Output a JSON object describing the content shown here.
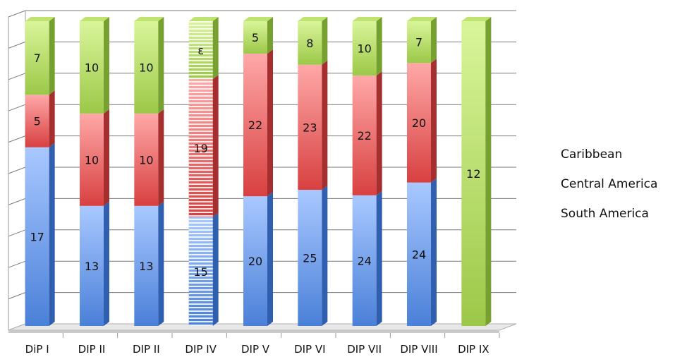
{
  "chart_data": {
    "type": "bar",
    "stacked": true,
    "style": "3d",
    "categories": [
      "DiP I",
      "DIP II",
      "DIP II",
      "DIP IV",
      "DIP V",
      "DIP VI",
      "DIP VII",
      "DIP VIII",
      "DIP IX"
    ],
    "series": [
      {
        "name": "South America",
        "values": [
          17,
          13,
          13,
          15,
          20,
          25,
          24,
          24,
          0
        ],
        "labels": [
          "17",
          "13",
          "13",
          "15",
          "20",
          "25",
          "24",
          "24",
          ""
        ]
      },
      {
        "name": "Central America",
        "values": [
          5,
          10,
          10,
          19,
          22,
          23,
          22,
          20,
          0
        ],
        "labels": [
          "5",
          "10",
          "10",
          "19",
          "22",
          "23",
          "22",
          "20",
          ""
        ]
      },
      {
        "name": "Caribbean",
        "values": [
          7,
          10,
          10,
          8,
          5,
          8,
          10,
          7,
          12
        ],
        "labels": [
          "7",
          "10",
          "10",
          "ε",
          "5",
          "8",
          "10",
          "7",
          "12"
        ]
      }
    ],
    "y_display": "percent_stacked",
    "grid": true,
    "legend_position": "right",
    "legend_order": [
      "Caribbean",
      "Central America",
      "South America"
    ],
    "colors": {
      "South America": "#5b8fe0",
      "Central America": "#e05050",
      "Caribbean": "#9acb45"
    }
  }
}
